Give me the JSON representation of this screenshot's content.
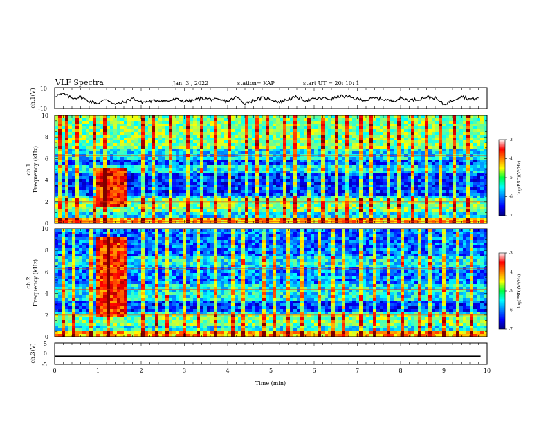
{
  "header": {
    "title": "VLF Spectra",
    "date": "Jan. 3 , 2022",
    "station": "station= KAP",
    "start": "start UT = 20: 10: 1"
  },
  "chart_data": [
    {
      "type": "line",
      "panel": "ch1-waveform",
      "ylabel": "ch.1(V)",
      "ylim": [
        -10,
        10
      ],
      "yticks": [
        "10",
        "-10"
      ],
      "xlim": [
        0,
        10
      ],
      "series": [
        {
          "color": "#000000",
          "x": [
            0.0,
            0.2,
            0.4,
            0.6,
            0.8,
            1.0,
            1.2,
            1.4,
            1.6,
            1.8,
            2.0,
            2.2,
            2.4,
            2.6,
            2.8,
            3.0,
            3.2,
            3.4,
            3.6,
            3.8,
            4.0,
            4.2,
            4.4,
            4.6,
            4.8,
            5.0,
            5.2,
            5.4,
            5.6,
            5.8,
            6.0,
            6.2,
            6.4,
            6.6,
            6.8,
            7.0,
            7.2,
            7.4,
            7.6,
            7.8,
            8.0,
            8.2,
            8.4,
            8.6,
            8.8,
            9.0,
            9.2,
            9.4,
            9.6,
            9.8
          ],
          "values": [
            2,
            4,
            0,
            1,
            -3,
            -5,
            -1,
            -6,
            -4,
            0,
            -4,
            -3,
            -2,
            -3,
            -1,
            -3,
            -2,
            0,
            -1,
            -2,
            -3,
            1,
            -5,
            -2,
            0,
            -1,
            -4,
            -1,
            1,
            -2,
            -1,
            0,
            -1,
            2,
            1,
            -1,
            -2,
            0,
            -1,
            -3,
            0,
            -2,
            -1,
            1,
            0,
            -6,
            -2,
            2,
            -1,
            0
          ]
        }
      ]
    },
    {
      "type": "heatmap",
      "panel": "ch1-spectrogram",
      "ylabel": "ch.1\nFrequency (kHz)",
      "xlim": [
        0,
        10
      ],
      "ylim": [
        0,
        10
      ],
      "yticks": [
        "0",
        "2",
        "4",
        "6",
        "8",
        "10"
      ],
      "colorbar": {
        "min": -7,
        "max": -3,
        "ticks": [
          "-3",
          "-4",
          "-5",
          "-6",
          "-7"
        ],
        "label": "log(PSD)(V²/Hz)"
      },
      "background_level": -5.6,
      "bands": [
        {
          "f_lo": 0.0,
          "f_hi": 0.4,
          "level": -4.2
        },
        {
          "f_lo": 1.0,
          "f_hi": 2.2,
          "level": -5.0
        },
        {
          "f_lo": 2.6,
          "f_hi": 4.6,
          "level": -6.3
        },
        {
          "f_lo": 5.4,
          "f_hi": 6.0,
          "level": -6.2
        },
        {
          "f_lo": 7.0,
          "f_hi": 10.0,
          "level": -5.0
        }
      ],
      "burst": {
        "t_start": 1.0,
        "t_end": 1.65,
        "f_lo": 1.6,
        "f_hi": 5.2,
        "level": -3.6
      },
      "spikes_min": [
        0.1,
        0.3,
        0.55,
        0.9,
        1.15,
        2.05,
        2.3,
        2.7,
        3.1,
        3.4,
        3.75,
        4.05,
        4.4,
        4.7,
        4.95,
        5.3,
        5.55,
        5.85,
        6.2,
        6.5,
        6.8,
        7.05,
        7.35,
        7.7,
        7.95,
        8.3,
        8.6,
        8.95,
        9.25,
        9.55
      ]
    },
    {
      "type": "heatmap",
      "panel": "ch2-spectrogram",
      "ylabel": "ch.2\nFrequency (kHz)",
      "xlim": [
        0,
        10
      ],
      "ylim": [
        0,
        10
      ],
      "yticks": [
        "0",
        "2",
        "4",
        "6",
        "8",
        "10"
      ],
      "colorbar": {
        "min": -7,
        "max": -3,
        "ticks": [
          "-3",
          "-4",
          "-5",
          "-6",
          "-7"
        ],
        "label": "log(PSD)(V²/Hz)"
      },
      "background_level": -5.5,
      "bands": [
        {
          "f_lo": 0.0,
          "f_hi": 0.4,
          "level": -4.2
        },
        {
          "f_lo": 1.0,
          "f_hi": 2.0,
          "level": -5.0
        },
        {
          "f_lo": 2.2,
          "f_hi": 3.4,
          "level": -6.3
        },
        {
          "f_lo": 5.0,
          "f_hi": 6.4,
          "level": -6.0
        },
        {
          "f_lo": 7.5,
          "f_hi": 10.0,
          "level": -6.1
        }
      ],
      "burst": {
        "t_start": 1.0,
        "t_end": 1.65,
        "f_lo": 1.8,
        "f_hi": 9.2,
        "level": -3.7
      },
      "spikes_min": [
        0.2,
        0.45,
        0.8,
        1.2,
        2.0,
        2.35,
        2.6,
        3.0,
        3.3,
        3.7,
        4.1,
        4.35,
        4.8,
        5.1,
        5.4,
        5.7,
        6.1,
        6.4,
        6.7,
        7.1,
        7.4,
        7.75,
        8.05,
        8.4,
        8.7,
        9.0,
        9.35,
        9.6
      ]
    },
    {
      "type": "line",
      "panel": "ch3-waveform",
      "ylabel": "ch.3(V)",
      "ylim": [
        -5,
        5
      ],
      "yticks": [
        "5",
        "0",
        "-5"
      ],
      "xlim": [
        0,
        10
      ],
      "xlabel": "Time (min)",
      "xticks": [
        "0",
        "1",
        "2",
        "3",
        "4",
        "5",
        "6",
        "7",
        "8",
        "9",
        "10"
      ],
      "series": [
        {
          "color": "#000000",
          "x": [
            0.0,
            9.85
          ],
          "values": [
            -1.3,
            -1.3
          ],
          "band_halfwidth": 0.35
        }
      ]
    }
  ]
}
